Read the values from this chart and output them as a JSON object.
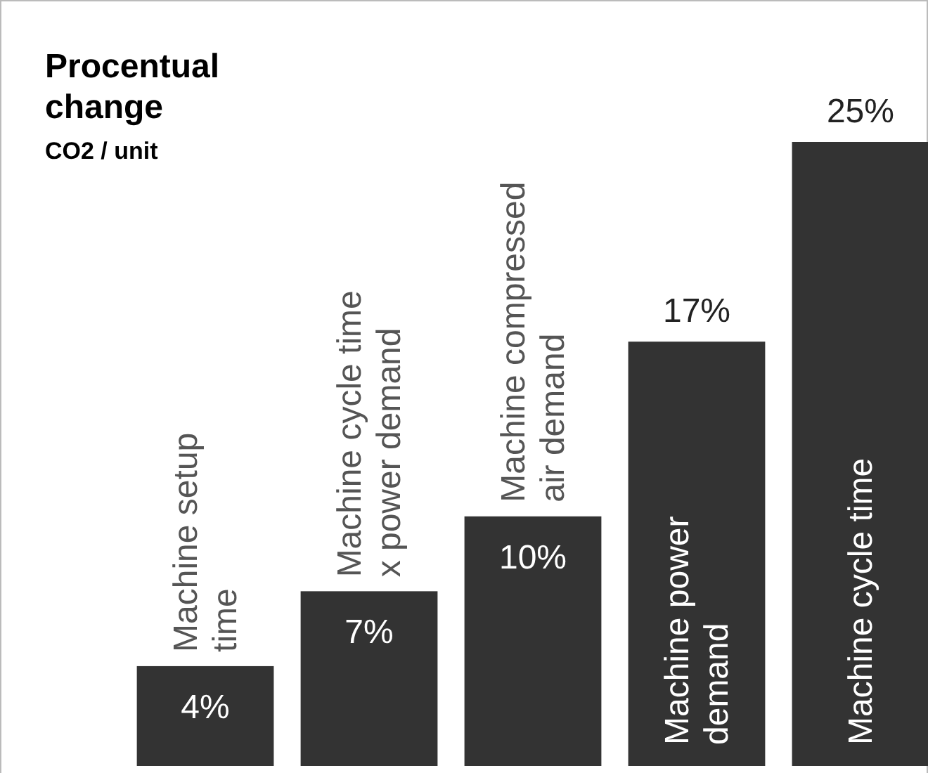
{
  "chart_data": {
    "type": "bar",
    "title": "Procentual change",
    "subtitle": "CO2 / unit",
    "categories": [
      "Machine setup\ntime",
      "Machine cycle time\nx power demand",
      "Machine compressed\nair demand",
      "Machine power\ndemand",
      "Machine cycle time"
    ],
    "values": [
      4,
      7,
      10,
      17,
      25
    ],
    "value_labels": [
      "4%",
      "7%",
      "10%",
      "17%",
      "25%"
    ],
    "color": "#333333"
  }
}
